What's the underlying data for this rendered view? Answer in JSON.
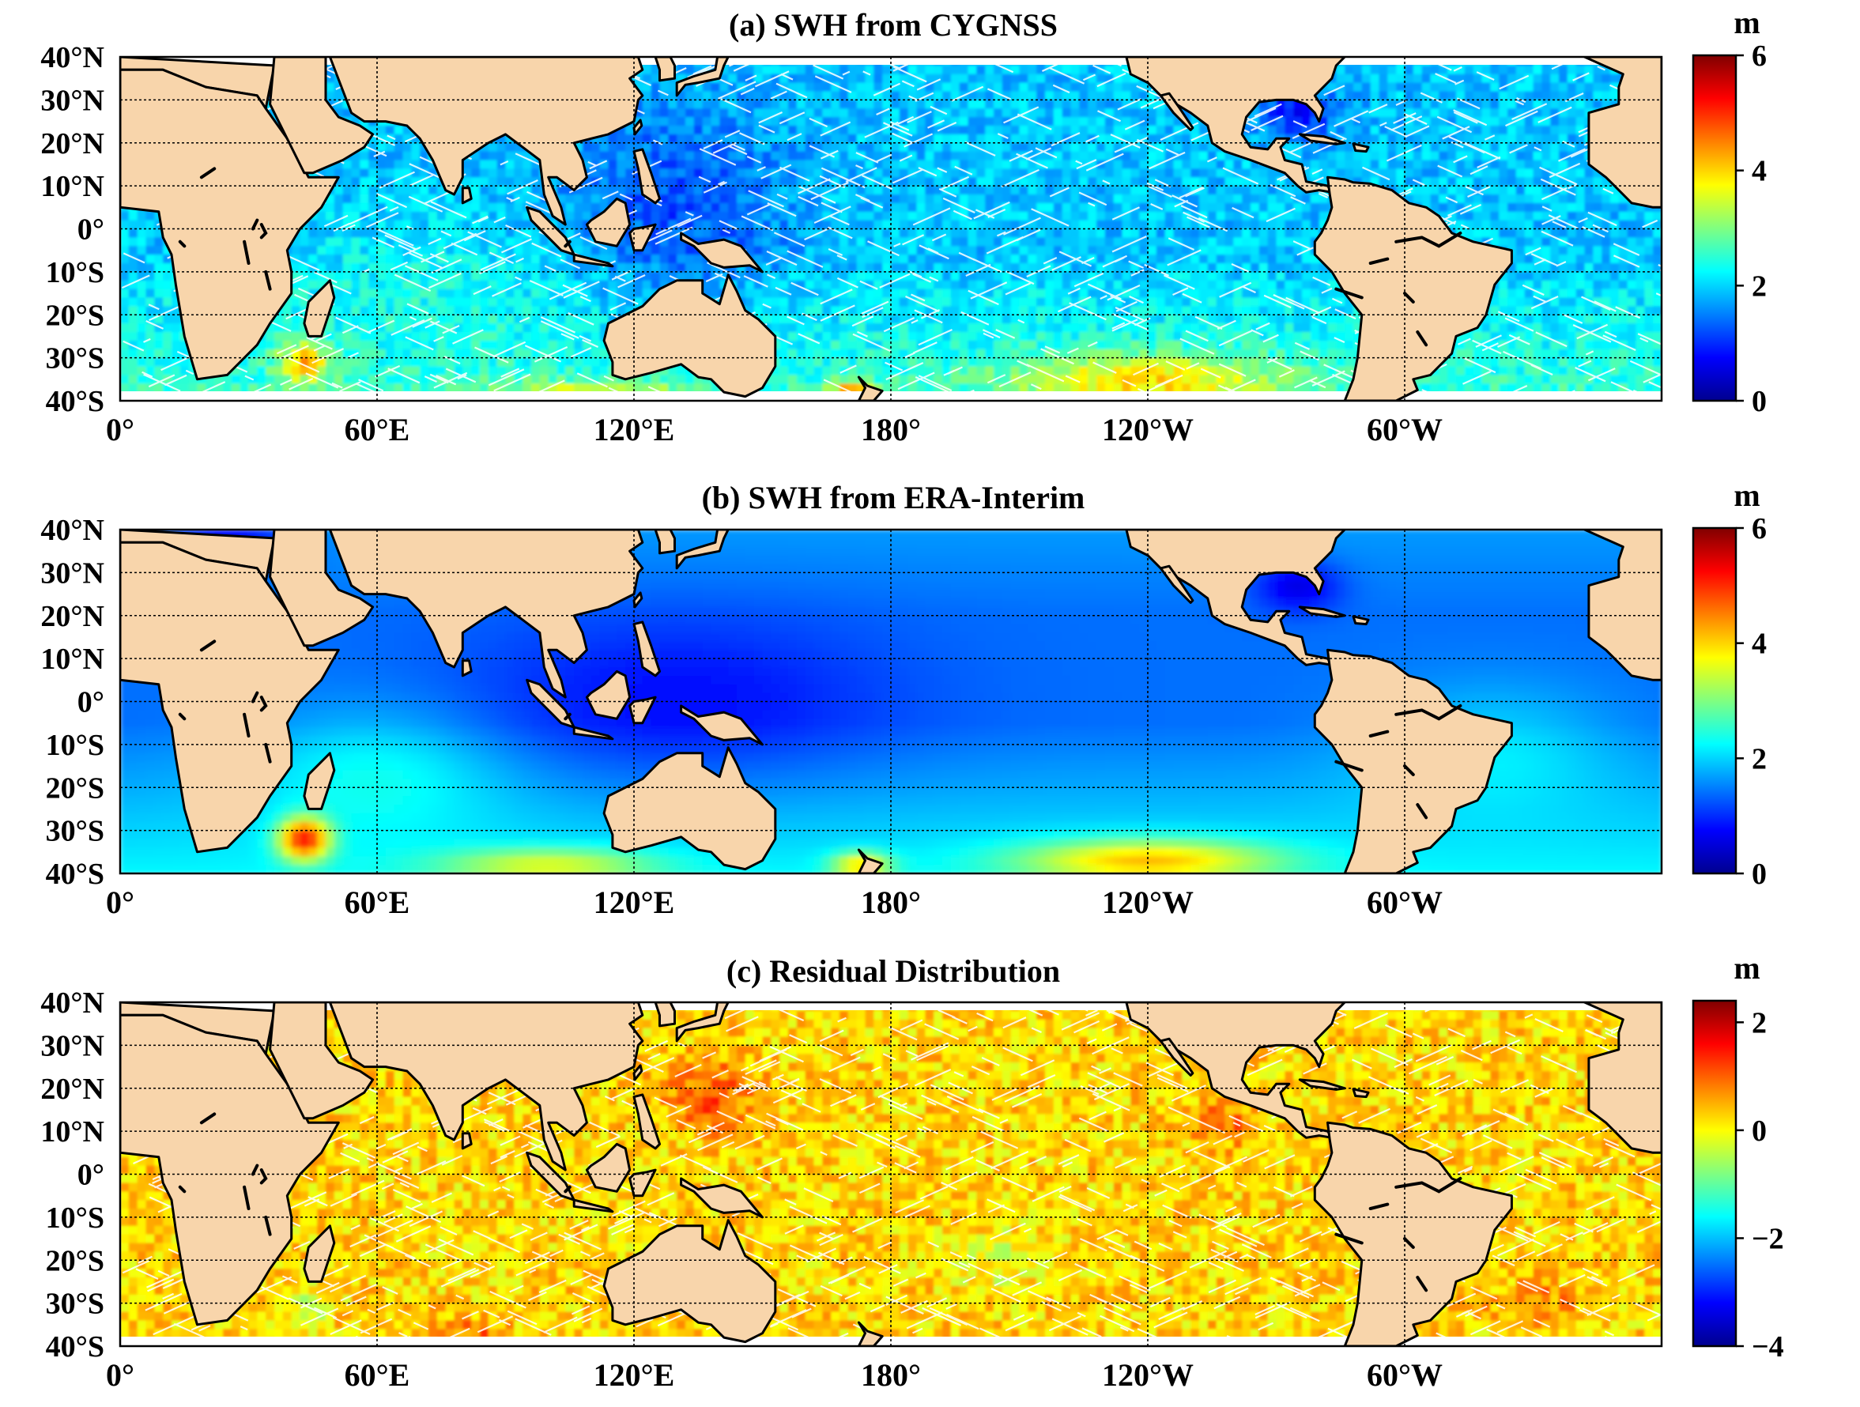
{
  "panels": [
    {
      "title": "(a) SWH from CYGNSS",
      "unit": "m",
      "colorbar_ticks": [
        "6",
        "4",
        "2",
        "0"
      ],
      "scale_min": 0,
      "scale_max": 6,
      "field": "cygnss",
      "has_gaps": true
    },
    {
      "title": "(b) SWH from ERA-Interim",
      "unit": "m",
      "colorbar_ticks": [
        "6",
        "4",
        "2",
        "0"
      ],
      "scale_min": 0,
      "scale_max": 6,
      "field": "era",
      "has_gaps": false
    },
    {
      "title": "(c) Residual Distribution",
      "unit": "m",
      "colorbar_ticks": [
        "2",
        "0",
        "−2",
        "−4"
      ],
      "scale_min": -4,
      "scale_max": 2.4,
      "field": "residual",
      "has_gaps": true
    }
  ],
  "lat_labels": [
    "40°N",
    "30°N",
    "20°N",
    "10°N",
    "0°",
    "10°S",
    "20°S",
    "30°S",
    "40°S"
  ],
  "lon_labels": [
    "0°",
    "60°E",
    "120°E",
    "180°",
    "120°W",
    "60°W"
  ],
  "map_extent": {
    "lon_min": 0,
    "lon_max": 360,
    "lat_min": -40,
    "lat_max": 40
  },
  "colors": {
    "land": "#f8d5ab",
    "coastline": "#000000",
    "gridline": "#000000",
    "colormap": [
      "#00008f",
      "#0000ff",
      "#0080ff",
      "#00ffff",
      "#80ff80",
      "#ffff00",
      "#ff8000",
      "#ff0000",
      "#800000"
    ]
  }
}
